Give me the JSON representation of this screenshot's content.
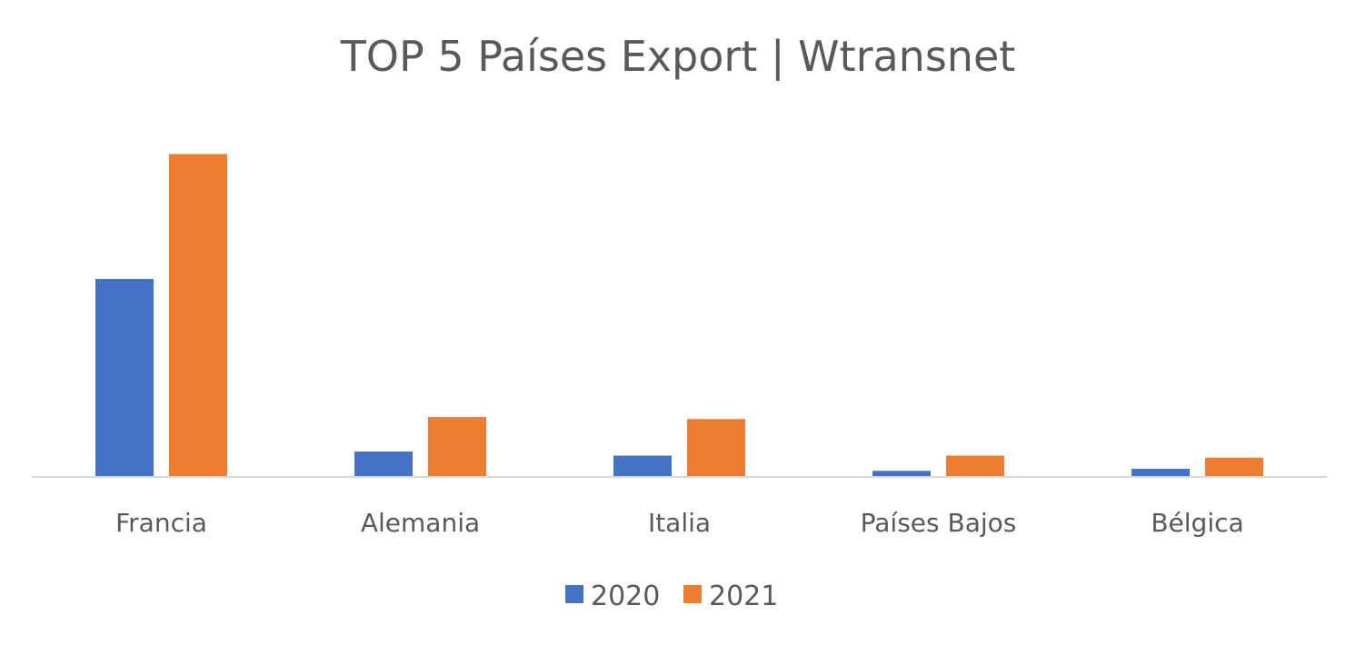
{
  "chart_data": {
    "type": "bar",
    "title": "TOP 5 Países Export | Wtransnet",
    "xlabel": "",
    "ylabel": "",
    "categories": [
      "Francia",
      "Alemania",
      "Italia",
      "Países Bajos",
      "Bélgica"
    ],
    "series": [
      {
        "name": "2020",
        "color": "#4472C4",
        "values": [
          195,
          25,
          21,
          6,
          8
        ]
      },
      {
        "name": "2021",
        "color": "#ED7D31",
        "values": [
          318,
          59,
          57,
          21,
          19
        ]
      }
    ],
    "ylim": [
      0,
      340
    ],
    "grid": false,
    "legend_position": "bottom"
  }
}
